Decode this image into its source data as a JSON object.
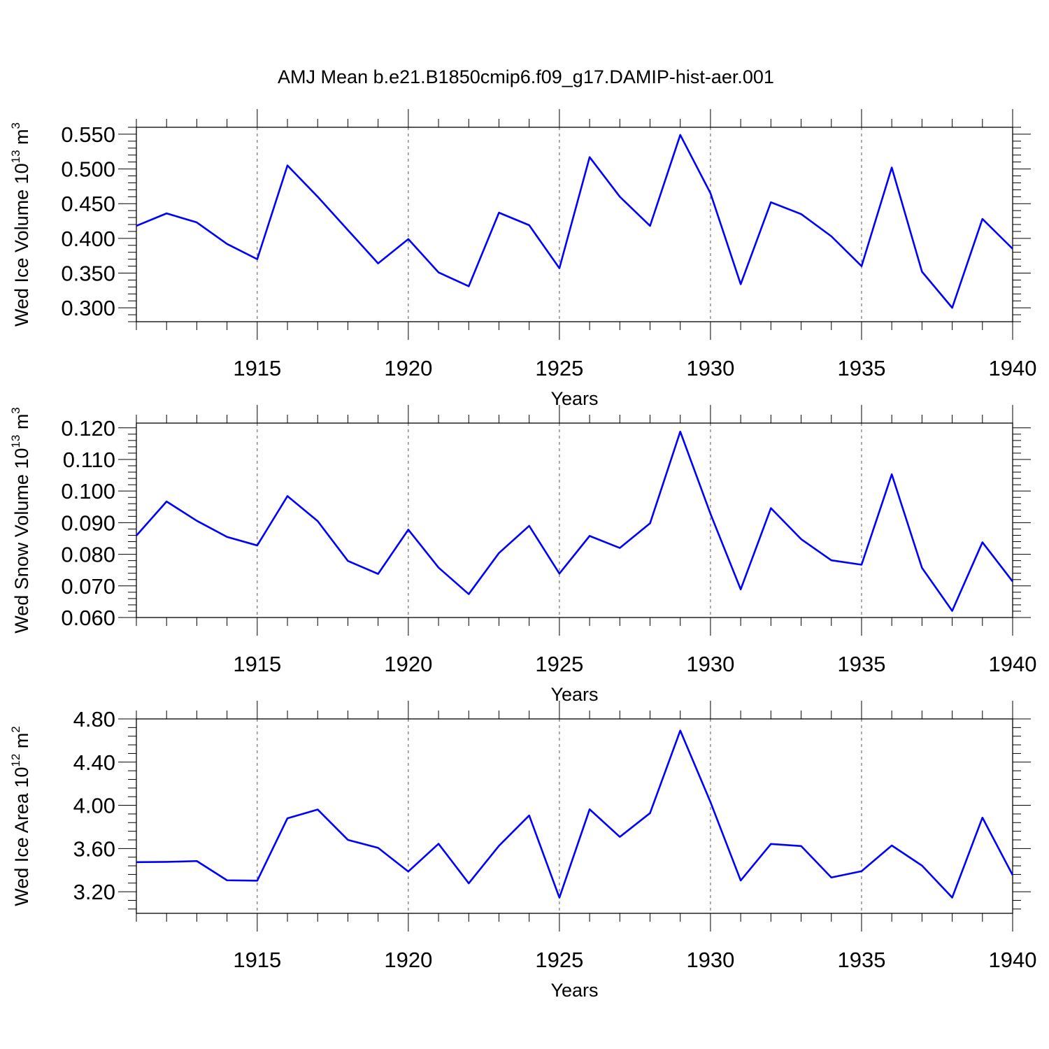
{
  "title": "AMJ Mean b.e21.B1850cmip6.f09_g17.DAMIP-hist-aer.001",
  "colors": {
    "line": "#0000ff",
    "axes": "#000000",
    "grid": "#555555"
  },
  "chart_data": [
    {
      "type": "line",
      "id": "ice-volume",
      "ylabel": {
        "text": "Wed Ice Volume 10",
        "exp": "13",
        "unit": " m",
        "unit_exp": "3"
      },
      "xlabel": "Years",
      "xlim": [
        1911,
        1940
      ],
      "ylim": [
        0.28,
        0.56
      ],
      "xticks": [
        1915,
        1920,
        1925,
        1930,
        1935,
        1940
      ],
      "xtick_labels": [
        "1915",
        "1920",
        "1925",
        "1930",
        "1935",
        "1940"
      ],
      "yticks": [
        0.3,
        0.35,
        0.4,
        0.45,
        0.5,
        0.55
      ],
      "ytick_labels": [
        "0.300",
        "0.350",
        "0.400",
        "0.450",
        "0.500",
        "0.550"
      ],
      "grid": "vertical-dashed",
      "series": [
        {
          "name": "Wed Ice Volume",
          "x": [
            1911,
            1912,
            1913,
            1914,
            1915,
            1916,
            1917,
            1918,
            1919,
            1920,
            1921,
            1922,
            1923,
            1924,
            1925,
            1926,
            1927,
            1928,
            1929,
            1930,
            1931,
            1932,
            1933,
            1934,
            1935,
            1936,
            1937,
            1938,
            1939,
            1940
          ],
          "y": [
            0.418,
            0.436,
            0.423,
            0.392,
            0.37,
            0.505,
            0.46,
            0.412,
            0.364,
            0.399,
            0.351,
            0.331,
            0.437,
            0.419,
            0.357,
            0.517,
            0.46,
            0.418,
            0.549,
            0.465,
            0.334,
            0.452,
            0.435,
            0.403,
            0.36,
            0.502,
            0.352,
            0.3,
            0.428,
            0.385
          ]
        }
      ]
    },
    {
      "type": "line",
      "id": "snow-volume",
      "ylabel": {
        "text": "Wed Snow Volume 10",
        "exp": "13",
        "unit": " m",
        "unit_exp": "3"
      },
      "xlabel": "Years",
      "xlim": [
        1911,
        1940
      ],
      "ylim": [
        0.06,
        0.1215
      ],
      "xticks": [
        1915,
        1920,
        1925,
        1930,
        1935,
        1940
      ],
      "xtick_labels": [
        "1915",
        "1920",
        "1925",
        "1930",
        "1935",
        "1940"
      ],
      "yticks": [
        0.06,
        0.07,
        0.08,
        0.09,
        0.1,
        0.11,
        0.12
      ],
      "ytick_labels": [
        "0.060",
        "0.070",
        "0.080",
        "0.090",
        "0.100",
        "0.110",
        "0.120"
      ],
      "grid": "vertical-dashed",
      "series": [
        {
          "name": "Wed Snow Volume",
          "x": [
            1911,
            1912,
            1913,
            1914,
            1915,
            1916,
            1917,
            1918,
            1919,
            1920,
            1921,
            1922,
            1923,
            1924,
            1925,
            1926,
            1927,
            1928,
            1929,
            1930,
            1931,
            1932,
            1933,
            1934,
            1935,
            1936,
            1937,
            1938,
            1939,
            1940
          ],
          "y": [
            0.0859,
            0.0967,
            0.0906,
            0.0855,
            0.0828,
            0.0984,
            0.0905,
            0.0779,
            0.0738,
            0.0878,
            0.0758,
            0.0674,
            0.0804,
            0.089,
            0.0739,
            0.0858,
            0.082,
            0.0898,
            0.1188,
            0.0928,
            0.0689,
            0.0946,
            0.0848,
            0.0781,
            0.0767,
            0.1053,
            0.0757,
            0.0621,
            0.0838,
            0.0714
          ]
        }
      ]
    },
    {
      "type": "line",
      "id": "ice-area",
      "ylabel": {
        "text": "Wed Ice Area 10",
        "exp": "12",
        "unit": " m",
        "unit_exp": "2"
      },
      "xlabel": "Years",
      "xlim": [
        1911,
        1940
      ],
      "ylim": [
        3.0,
        4.8
      ],
      "xticks": [
        1915,
        1920,
        1925,
        1930,
        1935,
        1940
      ],
      "xtick_labels": [
        "1915",
        "1920",
        "1925",
        "1930",
        "1935",
        "1940"
      ],
      "yticks": [
        3.2,
        3.6,
        4.0,
        4.4,
        4.8
      ],
      "ytick_labels": [
        "3.20",
        "3.60",
        "4.00",
        "4.40",
        "4.80"
      ],
      "grid": "vertical-dashed",
      "series": [
        {
          "name": "Wed Ice Area",
          "x": [
            1911,
            1912,
            1913,
            1914,
            1915,
            1916,
            1917,
            1918,
            1919,
            1920,
            1921,
            1922,
            1923,
            1924,
            1925,
            1926,
            1927,
            1928,
            1929,
            1930,
            1931,
            1932,
            1933,
            1934,
            1935,
            1936,
            1937,
            1938,
            1939,
            1940
          ],
          "y": [
            3.474,
            3.476,
            3.484,
            3.306,
            3.302,
            3.88,
            3.961,
            3.68,
            3.606,
            3.387,
            3.644,
            3.278,
            3.625,
            3.906,
            3.145,
            3.963,
            3.708,
            3.928,
            4.692,
            4.03,
            3.304,
            3.642,
            3.623,
            3.332,
            3.39,
            3.628,
            3.442,
            3.146,
            3.886,
            3.354
          ]
        }
      ]
    }
  ]
}
